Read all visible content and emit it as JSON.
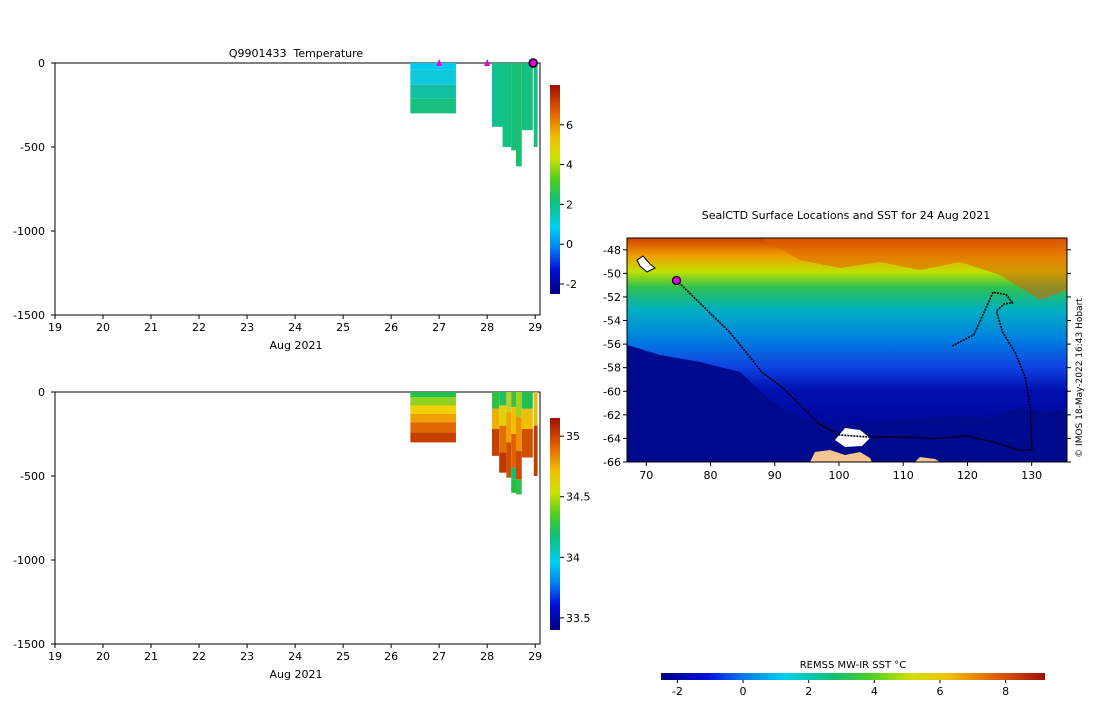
{
  "chart_data": [
    {
      "type": "heatmap",
      "title": "Q9901433  Temperature",
      "xlabel": "Aug 2021",
      "ylabel": "",
      "x_ticks": [
        "19",
        "20",
        "21",
        "22",
        "23",
        "24",
        "25",
        "26",
        "27",
        "28",
        "29"
      ],
      "xlim": [
        19,
        29.1
      ],
      "y_ticks": [
        "0",
        "-500",
        "-1000",
        "-1500"
      ],
      "ylim": [
        -1500,
        0
      ],
      "colorbar": {
        "ticks": [
          "-2",
          "0",
          "2",
          "4",
          "6"
        ],
        "range": [
          -2.5,
          8
        ]
      },
      "markers_days": [
        27,
        28,
        29
      ],
      "profiles": [
        {
          "x0": 26.4,
          "x1": 27.35,
          "bottom": -300,
          "bands": [
            [
              0,
              -40,
              "#00ccee"
            ],
            [
              -40,
              -130,
              "#10c8dc"
            ],
            [
              -130,
              -210,
              "#10c0a0"
            ],
            [
              -210,
              -300,
              "#18c080"
            ]
          ]
        },
        {
          "x0": 28.1,
          "x1": 28.32,
          "bottom": -380,
          "bands": [
            [
              0,
              -380,
              "#10c090"
            ]
          ]
        },
        {
          "x0": 28.32,
          "x1": 28.5,
          "bottom": -500,
          "bands": [
            [
              0,
              -500,
              "#12c080"
            ]
          ]
        },
        {
          "x0": 28.5,
          "x1": 28.6,
          "bottom": -520,
          "bands": [
            [
              0,
              -520,
              "#14c078"
            ]
          ]
        },
        {
          "x0": 28.6,
          "x1": 28.72,
          "bottom": -615,
          "bands": [
            [
              0,
              -615,
              "#18c070"
            ]
          ]
        },
        {
          "x0": 28.72,
          "x1": 28.95,
          "bottom": -400,
          "bands": [
            [
              0,
              -400,
              "#14c080"
            ]
          ]
        },
        {
          "x0": 28.97,
          "x1": 29.05,
          "bottom": -500,
          "bands": [
            [
              0,
              -500,
              "#12c088"
            ]
          ]
        }
      ]
    },
    {
      "type": "heatmap",
      "title": "",
      "xlabel": "Aug 2021",
      "ylabel": "",
      "x_ticks": [
        "19",
        "20",
        "21",
        "22",
        "23",
        "24",
        "25",
        "26",
        "27",
        "28",
        "29"
      ],
      "xlim": [
        19,
        29.1
      ],
      "y_ticks": [
        "0",
        "-500",
        "-1000",
        "-1500"
      ],
      "ylim": [
        -1500,
        0
      ],
      "colorbar": {
        "ticks": [
          "33.5",
          "34",
          "34.5",
          "35"
        ],
        "range": [
          33.4,
          35.15
        ]
      },
      "profiles": [
        {
          "x0": 26.4,
          "x1": 27.35,
          "bottom": -300,
          "bands": [
            [
              0,
              -30,
              "#20c050"
            ],
            [
              -30,
              -80,
              "#90d020"
            ],
            [
              -80,
              -130,
              "#f0d000"
            ],
            [
              -130,
              -180,
              "#f0a000"
            ],
            [
              -180,
              -240,
              "#e06800"
            ],
            [
              -240,
              -300,
              "#c84000"
            ]
          ]
        },
        {
          "x0": 28.1,
          "x1": 28.25,
          "bottom": -380,
          "bands": [
            [
              0,
              -100,
              "#30c040"
            ],
            [
              -100,
              -220,
              "#f0b000"
            ],
            [
              -220,
              -380,
              "#c84000"
            ]
          ]
        },
        {
          "x0": 28.25,
          "x1": 28.4,
          "bottom": -480,
          "bands": [
            [
              0,
              -80,
              "#20c060"
            ],
            [
              -80,
              -200,
              "#e0d010"
            ],
            [
              -200,
              -360,
              "#e07000"
            ],
            [
              -360,
              -480,
              "#c03800"
            ]
          ]
        },
        {
          "x0": 28.4,
          "x1": 28.5,
          "bottom": -510,
          "bands": [
            [
              0,
              -120,
              "#c0d020"
            ],
            [
              -120,
              -300,
              "#f0a000"
            ],
            [
              -300,
              -510,
              "#d05000"
            ]
          ]
        },
        {
          "x0": 28.5,
          "x1": 28.6,
          "bottom": -600,
          "bands": [
            [
              0,
              -90,
              "#40c040"
            ],
            [
              -90,
              -250,
              "#f0c000"
            ],
            [
              -250,
              -450,
              "#e06000"
            ],
            [
              -450,
              -520,
              "#10c070"
            ],
            [
              -520,
              -600,
              "#20c040"
            ]
          ]
        },
        {
          "x0": 28.6,
          "x1": 28.72,
          "bottom": -610,
          "bands": [
            [
              0,
              -150,
              "#a0d020"
            ],
            [
              -150,
              -350,
              "#f09000"
            ],
            [
              -350,
              -520,
              "#d04800"
            ],
            [
              -520,
              -610,
              "#30c050"
            ]
          ]
        },
        {
          "x0": 28.72,
          "x1": 28.95,
          "bottom": -390,
          "bands": [
            [
              0,
              -100,
              "#20c050"
            ],
            [
              -100,
              -220,
              "#f0c000"
            ],
            [
              -220,
              -390,
              "#d05000"
            ]
          ]
        },
        {
          "x0": 28.97,
          "x1": 29.05,
          "bottom": -500,
          "bands": [
            [
              0,
              -200,
              "#e0c010"
            ],
            [
              -200,
              -500,
              "#c04000"
            ]
          ]
        }
      ]
    },
    {
      "type": "heatmap",
      "title": "SealCTD Surface Locations and SST for 24 Aug 2021",
      "xlabel": "",
      "ylabel": "",
      "x_ticks": [
        "70",
        "80",
        "90",
        "100",
        "110",
        "120",
        "130"
      ],
      "xlim": [
        67,
        135.5
      ],
      "y_ticks": [
        "-48",
        "-50",
        "-52",
        "-54",
        "-56",
        "-58",
        "-60",
        "-62",
        "-64",
        "-66"
      ],
      "ylim": [
        -66,
        -47
      ],
      "colorbar_label": "REMSS MW-IR SST °C",
      "colorbar": {
        "ticks": [
          "-2",
          "0",
          "2",
          "4",
          "6",
          "8"
        ],
        "range": [
          -2.5,
          9.2
        ]
      },
      "track": [
        [
          74.7,
          -50.6
        ],
        [
          77,
          -51.8
        ],
        [
          80,
          -53.4
        ],
        [
          83,
          -55
        ],
        [
          86,
          -57
        ],
        [
          88,
          -58.4
        ],
        [
          91,
          -59.6
        ],
        [
          94,
          -61.2
        ],
        [
          97,
          -62.8
        ],
        [
          100,
          -63.7
        ],
        [
          105,
          -63.9
        ],
        [
          110,
          -63.9
        ],
        [
          115,
          -64
        ],
        [
          120,
          -63.8
        ],
        [
          124,
          -64.3
        ],
        [
          128,
          -65
        ],
        [
          130,
          -65
        ],
        [
          129.8,
          -61.5
        ],
        [
          129,
          -58.8
        ],
        [
          127.5,
          -56.8
        ],
        [
          125.5,
          -55
        ],
        [
          124.5,
          -53.2
        ],
        [
          125.7,
          -52.6
        ],
        [
          127,
          -52.5
        ],
        [
          126,
          -51.8
        ],
        [
          124,
          -51.6
        ],
        [
          122.5,
          -53.4
        ],
        [
          121,
          -55.2
        ],
        [
          117.5,
          -56.2
        ]
      ],
      "current_position": [
        74.7,
        -50.6
      ],
      "credit": "© IMOS 18-May-2022 16:43 Hobart"
    }
  ]
}
